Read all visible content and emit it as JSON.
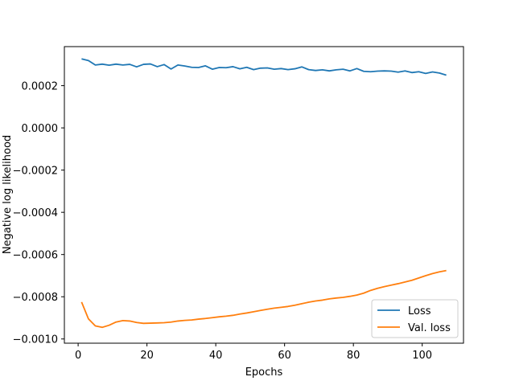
{
  "chart_data": {
    "type": "line",
    "xlabel": "Epochs",
    "ylabel": "Negative log likelihood",
    "xlim": [
      -4,
      112
    ],
    "ylim": [
      -0.00102,
      0.000385
    ],
    "xticks": [
      0,
      20,
      40,
      60,
      80,
      100
    ],
    "xtick_labels": [
      "0",
      "20",
      "40",
      "60",
      "80",
      "100"
    ],
    "yticks": [
      0.0002,
      0.0,
      -0.0002,
      -0.0004,
      -0.0006,
      -0.0008,
      -0.001
    ],
    "ytick_labels": [
      "0.0002",
      "0.0000",
      "−0.0002",
      "−0.0004",
      "−0.0006",
      "−0.0008",
      "−0.0010"
    ],
    "grid": false,
    "legend_position": "lower-right",
    "series": [
      {
        "name": "Loss",
        "color": "#1f77b4",
        "x": [
          1,
          3,
          5,
          7,
          9,
          11,
          13,
          15,
          17,
          19,
          21,
          23,
          25,
          27,
          29,
          31,
          33,
          35,
          37,
          39,
          41,
          43,
          45,
          47,
          49,
          51,
          53,
          55,
          57,
          59,
          61,
          63,
          65,
          67,
          69,
          71,
          73,
          75,
          77,
          79,
          81,
          83,
          85,
          87,
          89,
          91,
          93,
          95,
          97,
          99,
          101,
          103,
          105,
          107
        ],
        "values": [
          0.000327,
          0.000319,
          0.000298,
          0.000302,
          0.000297,
          0.000302,
          0.000298,
          0.000301,
          0.000289,
          0.000301,
          0.000303,
          0.00029,
          0.0003,
          0.000279,
          0.000298,
          0.000293,
          0.000287,
          0.000286,
          0.000294,
          0.000278,
          0.000286,
          0.000285,
          0.00029,
          0.00028,
          0.000287,
          0.000276,
          0.000283,
          0.000284,
          0.000278,
          0.000281,
          0.000276,
          0.00028,
          0.000289,
          0.000276,
          0.000272,
          0.000275,
          0.00027,
          0.000275,
          0.000278,
          0.00027,
          0.000281,
          0.000268,
          0.000266,
          0.000269,
          0.00027,
          0.000269,
          0.000264,
          0.00027,
          0.000262,
          0.000266,
          0.000258,
          0.000265,
          0.00026,
          0.00025
        ]
      },
      {
        "name": "Val. loss",
        "color": "#ff7f0e",
        "x": [
          1,
          3,
          5,
          7,
          9,
          11,
          13,
          15,
          17,
          19,
          21,
          23,
          25,
          27,
          29,
          31,
          33,
          35,
          37,
          39,
          41,
          43,
          45,
          47,
          49,
          51,
          53,
          55,
          57,
          59,
          61,
          63,
          65,
          67,
          69,
          71,
          73,
          75,
          77,
          79,
          81,
          83,
          85,
          87,
          89,
          91,
          93,
          95,
          97,
          99,
          101,
          103,
          105,
          107
        ],
        "values": [
          -0.000825,
          -0.000905,
          -0.000938,
          -0.000945,
          -0.000935,
          -0.00092,
          -0.000913,
          -0.000915,
          -0.000922,
          -0.000926,
          -0.000925,
          -0.000924,
          -0.000923,
          -0.00092,
          -0.000915,
          -0.000912,
          -0.00091,
          -0.000906,
          -0.000903,
          -0.000899,
          -0.000895,
          -0.000892,
          -0.000888,
          -0.000882,
          -0.000877,
          -0.000871,
          -0.000865,
          -0.000859,
          -0.000854,
          -0.00085,
          -0.000846,
          -0.00084,
          -0.000833,
          -0.000826,
          -0.00082,
          -0.000816,
          -0.00081,
          -0.000806,
          -0.000803,
          -0.000798,
          -0.000792,
          -0.000783,
          -0.00077,
          -0.00076,
          -0.000752,
          -0.000745,
          -0.000738,
          -0.00073,
          -0.000722,
          -0.000711,
          -0.0007,
          -0.00069,
          -0.000682,
          -0.000676
        ]
      }
    ]
  }
}
